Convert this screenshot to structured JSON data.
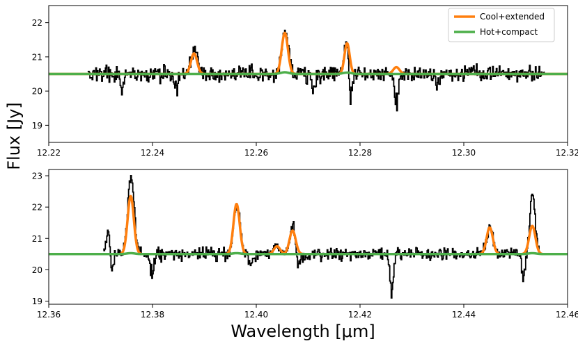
{
  "figure": {
    "ylabel": "Flux [Jy]",
    "xlabel": "Wavelength [μm]"
  },
  "colors": {
    "data": "#000000",
    "cool_extended": "#ff7f0e",
    "hot_compact": "#4daf4a"
  },
  "chart_data": [
    {
      "type": "line",
      "panel": "top",
      "xlim": [
        12.22,
        12.32
      ],
      "ylim": [
        18.5,
        22.5
      ],
      "x_ticks": [
        12.22,
        12.24,
        12.26,
        12.28,
        12.3,
        12.32
      ],
      "x_tick_labels": [
        "12.22",
        "12.24",
        "12.26",
        "12.28",
        "12.30",
        "12.32"
      ],
      "y_ticks": [
        19,
        20,
        21,
        22
      ],
      "y_tick_labels": [
        "19",
        "20",
        "21",
        "22"
      ],
      "grid": false,
      "legend": {
        "placement": "top-right",
        "entries": [
          "Cool+extended",
          "Hot+compact"
        ]
      },
      "observed": {
        "x_range": [
          12.2275,
          12.3155
        ],
        "baseline": 20.5,
        "noise": 0.16,
        "lines": [
          {
            "x": 12.248,
            "height": 0.75,
            "sigma": 0.0006
          },
          {
            "x": 12.2655,
            "height": 1.25,
            "sigma": 0.0006
          },
          {
            "x": 12.2775,
            "height": 1.2,
            "sigma": 0.0005
          },
          {
            "x": 12.287,
            "height": 0.2,
            "sigma": 0.0006
          }
        ],
        "dips": [
          {
            "x": 12.2445,
            "depth": 0.6
          },
          {
            "x": 12.278,
            "depth": 1.75
          },
          {
            "x": 12.287,
            "depth": 1.45
          },
          {
            "x": 12.234,
            "depth": 0.55
          },
          {
            "x": 12.271,
            "depth": 0.6
          },
          {
            "x": 12.295,
            "depth": 0.5
          }
        ]
      },
      "series": [
        {
          "name": "Cool+extended",
          "baseline": 20.5,
          "x_range": [
            12.22,
            12.32
          ],
          "peaks": [
            {
              "x": 12.248,
              "height": 0.6,
              "sigma": 0.0006
            },
            {
              "x": 12.2655,
              "height": 1.2,
              "sigma": 0.0006
            },
            {
              "x": 12.2775,
              "height": 0.9,
              "sigma": 0.0005
            },
            {
              "x": 12.287,
              "height": 0.2,
              "sigma": 0.0006
            }
          ]
        },
        {
          "name": "Hot+compact",
          "baseline": 20.5,
          "x_range": [
            12.22,
            12.32
          ],
          "peaks": [
            {
              "x": 12.2655,
              "height": 0.05,
              "sigma": 0.0008
            },
            {
              "x": 12.2775,
              "height": 0.04,
              "sigma": 0.0008
            }
          ]
        }
      ]
    },
    {
      "type": "line",
      "panel": "bottom",
      "xlim": [
        12.36,
        12.46
      ],
      "ylim": [
        18.9,
        23.2
      ],
      "x_ticks": [
        12.36,
        12.38,
        12.4,
        12.42,
        12.44,
        12.46
      ],
      "x_tick_labels": [
        "12.36",
        "12.38",
        "12.40",
        "12.42",
        "12.44",
        "12.46"
      ],
      "y_ticks": [
        19,
        20,
        21,
        22,
        23
      ],
      "y_tick_labels": [
        "19",
        "20",
        "21",
        "22",
        "23"
      ],
      "grid": false,
      "observed": {
        "x_range": [
          12.3705,
          12.4545
        ],
        "baseline": 20.5,
        "noise": 0.13,
        "lines": [
          {
            "x": 12.3758,
            "height": 2.45,
            "sigma": 0.0006
          },
          {
            "x": 12.3962,
            "height": 1.6,
            "sigma": 0.0006
          },
          {
            "x": 12.407,
            "height": 0.85,
            "sigma": 0.0006
          },
          {
            "x": 12.404,
            "height": 0.25,
            "sigma": 0.0006
          },
          {
            "x": 12.445,
            "height": 0.85,
            "sigma": 0.0006
          },
          {
            "x": 12.4532,
            "height": 1.95,
            "sigma": 0.0005
          },
          {
            "x": 12.3715,
            "height": 1.0,
            "sigma": 0.0004
          }
        ],
        "dips": [
          {
            "x": 12.372,
            "depth": 1.25
          },
          {
            "x": 12.3798,
            "depth": 0.8
          },
          {
            "x": 12.426,
            "depth": 1.45
          },
          {
            "x": 12.408,
            "depth": 0.65
          },
          {
            "x": 12.4515,
            "depth": 1.05
          },
          {
            "x": 12.399,
            "depth": 0.4
          }
        ]
      },
      "series": [
        {
          "name": "Cool+extended",
          "baseline": 20.5,
          "x_range": [
            12.36,
            12.46
          ],
          "peaks": [
            {
              "x": 12.3758,
              "height": 1.85,
              "sigma": 0.0006
            },
            {
              "x": 12.3962,
              "height": 1.6,
              "sigma": 0.0006
            },
            {
              "x": 12.404,
              "height": 0.25,
              "sigma": 0.0006
            },
            {
              "x": 12.407,
              "height": 0.75,
              "sigma": 0.0006
            },
            {
              "x": 12.445,
              "height": 0.85,
              "sigma": 0.0006
            },
            {
              "x": 12.4532,
              "height": 0.9,
              "sigma": 0.0006
            }
          ]
        },
        {
          "name": "Hot+compact",
          "baseline": 20.5,
          "x_range": [
            12.36,
            12.46
          ],
          "peaks": [
            {
              "x": 12.3758,
              "height": 0.03,
              "sigma": 0.0008
            },
            {
              "x": 12.3962,
              "height": 0.03,
              "sigma": 0.0008
            },
            {
              "x": 12.4532,
              "height": 0.03,
              "sigma": 0.0008
            }
          ]
        }
      ]
    }
  ]
}
